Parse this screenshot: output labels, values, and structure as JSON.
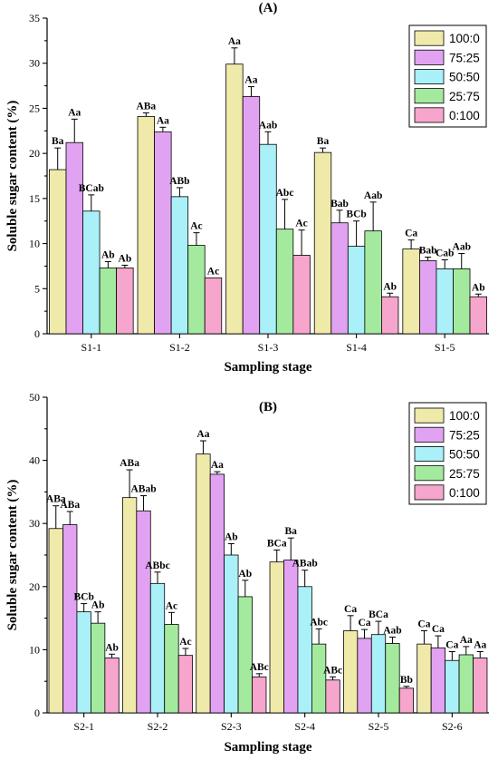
{
  "chart_data": [
    {
      "type": "bar",
      "title": "(A)",
      "xlabel": "Sampling stage",
      "ylabel": "Soluble sugar content (%)",
      "ylim": [
        0,
        35
      ],
      "yticks": [
        0,
        5,
        10,
        15,
        20,
        25,
        30,
        35
      ],
      "categories": [
        "S1-1",
        "S1-2",
        "S1-3",
        "S1-4",
        "S1-5"
      ],
      "legend_position": "top-right",
      "series": [
        {
          "name": "100:0",
          "color": "#f0eaaa",
          "values": [
            18.2,
            24.1,
            29.9,
            20.1,
            9.4
          ],
          "errors": [
            2.4,
            0.4,
            1.8,
            0.5,
            1.0
          ],
          "labels": [
            "Ba",
            "ABa",
            "Aa",
            "Ba",
            "Ca"
          ]
        },
        {
          "name": "75:25",
          "color": "#e2a2f2",
          "values": [
            21.2,
            22.4,
            26.3,
            12.3,
            8.1
          ],
          "errors": [
            2.6,
            0.5,
            1.1,
            1.4,
            0.4
          ],
          "labels": [
            "Aa",
            "Aa",
            "Aa",
            "Bab",
            "Bab"
          ]
        },
        {
          "name": "50:50",
          "color": "#aaf0f8",
          "values": [
            13.6,
            15.2,
            21.0,
            9.7,
            7.2
          ],
          "errors": [
            1.8,
            1.0,
            1.4,
            2.8,
            1.0
          ],
          "labels": [
            "BCab",
            "ABb",
            "Aab",
            "BCb",
            "Cab"
          ]
        },
        {
          "name": "25:75",
          "color": "#a4ea9e",
          "values": [
            7.3,
            9.8,
            11.6,
            11.4,
            7.2
          ],
          "errors": [
            0.7,
            1.4,
            3.3,
            3.2,
            1.7
          ],
          "labels": [
            "Ab",
            "Ac",
            "Abc",
            "Aab",
            "Aab"
          ]
        },
        {
          "name": "0:100",
          "color": "#f6a6cc",
          "values": [
            7.3,
            6.2,
            8.7,
            4.1,
            4.1
          ],
          "errors": [
            0.3,
            0.0,
            2.8,
            0.4,
            0.3
          ],
          "labels": [
            "Ab",
            "Ac",
            "Ac",
            "Ab",
            "Ab"
          ]
        }
      ]
    },
    {
      "type": "bar",
      "title": "(B)",
      "xlabel": "Sampling stage",
      "ylabel": "Soluble sugar content (%)",
      "ylim": [
        0,
        50
      ],
      "yticks": [
        0,
        10,
        20,
        30,
        40,
        50
      ],
      "categories": [
        "S2-1",
        "S2-2",
        "S2-3",
        "S2-4",
        "S2-5",
        "S2-6"
      ],
      "legend_position": "top-right",
      "series": [
        {
          "name": "100:0",
          "color": "#f0eaaa",
          "values": [
            29.2,
            34.1,
            41.0,
            23.9,
            13.0,
            10.9
          ],
          "errors": [
            3.6,
            4.4,
            2.1,
            1.9,
            2.4,
            2.1
          ],
          "labels": [
            "ABa",
            "ABa",
            "Aa",
            "BCa",
            "Ca",
            "Ca"
          ]
        },
        {
          "name": "75:25",
          "color": "#e2a2f2",
          "values": [
            29.8,
            32.0,
            37.8,
            24.2,
            11.8,
            10.3
          ],
          "errors": [
            2.1,
            2.4,
            0.4,
            3.5,
            1.4,
            1.9
          ],
          "labels": [
            "ABa",
            "ABab",
            "Aa",
            "Ba",
            "Ca",
            "Ca"
          ]
        },
        {
          "name": "50:50",
          "color": "#aaf0f8",
          "values": [
            16.0,
            20.5,
            25.0,
            20.0,
            12.4,
            8.3
          ],
          "errors": [
            1.3,
            1.8,
            1.8,
            2.6,
            2.1,
            1.4
          ],
          "labels": [
            "BCb",
            "ABbc",
            "Ab",
            "ABab",
            "BCa",
            "Ca"
          ]
        },
        {
          "name": "25:75",
          "color": "#a4ea9e",
          "values": [
            14.2,
            14.0,
            18.4,
            10.9,
            11.0,
            9.2
          ],
          "errors": [
            1.8,
            1.9,
            2.6,
            2.4,
            1.0,
            1.3
          ],
          "labels": [
            "Ab",
            "Ac",
            "Ab",
            "Abc",
            "Aab",
            "Aa"
          ]
        },
        {
          "name": "0:100",
          "color": "#f6a6cc",
          "values": [
            8.7,
            9.1,
            5.7,
            5.2,
            3.9,
            8.7
          ],
          "errors": [
            0.6,
            1.1,
            0.5,
            0.5,
            0.3,
            1.0
          ],
          "labels": [
            "Ab",
            "Ac",
            "ABc",
            "ABc",
            "Bb",
            "Aa"
          ]
        }
      ]
    }
  ]
}
